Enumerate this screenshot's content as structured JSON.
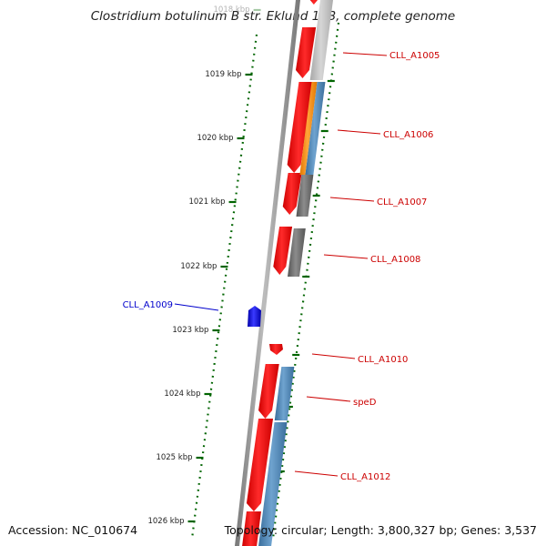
{
  "title": "Clostridium botulinum B str. Eklund 17B, complete genome",
  "footer": {
    "accession": "Accession: NC_010674",
    "topology": "Topology: circular; Length: 3,800,327 bp; Genes: 3,537"
  },
  "colors": {
    "forward_gene": "#ff0000",
    "reverse_gene": "#0000ff",
    "cds_blue": "#4682b4",
    "cds_gray": "#696969",
    "cds_light": "#bbbbbb",
    "cds_orange": "#ff8c00",
    "ticks": "#006400",
    "label_red": "#cc0000",
    "label_blue": "#0000cc"
  },
  "ticks": [
    {
      "label": "1018 kbp",
      "faded": true
    },
    {
      "label": "1019 kbp"
    },
    {
      "label": "1020 kbp"
    },
    {
      "label": "1021 kbp"
    },
    {
      "label": "1022 kbp"
    },
    {
      "label": "1023 kbp"
    },
    {
      "label": "1024 kbp"
    },
    {
      "label": "1025 kbp"
    },
    {
      "label": "1026 kbp"
    }
  ],
  "gene_labels": [
    {
      "label": "CLL_A1005",
      "color": "red"
    },
    {
      "label": "CLL_A1006",
      "color": "red"
    },
    {
      "label": "CLL_A1007",
      "color": "red"
    },
    {
      "label": "CLL_A1008",
      "color": "red"
    },
    {
      "label": "CLL_A1009",
      "color": "blue"
    },
    {
      "label": "CLL_A1010",
      "color": "red"
    },
    {
      "label": "speD",
      "color": "red"
    },
    {
      "label": "CLL_A1012",
      "color": "red"
    }
  ]
}
